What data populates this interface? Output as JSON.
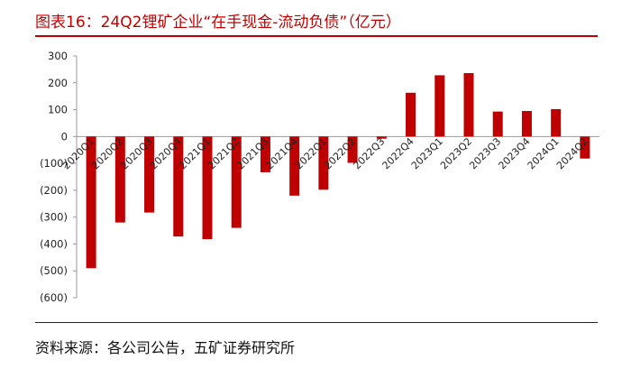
{
  "header": {
    "title": "图表16：24Q2锂矿企业“在手现金-流动负债”（亿元）"
  },
  "footer": {
    "source": "资料来源：各公司公告，五矿证券研究所"
  },
  "chart_data": {
    "type": "bar",
    "title": "图表16：24Q2锂矿企业“在手现金-流动负债”（亿元）",
    "xlabel": "",
    "ylabel": "",
    "categories": [
      "2020Q1",
      "2020Q2",
      "2020Q3",
      "2020Q4",
      "2021Q1",
      "2021Q2",
      "2021Q3",
      "2021Q4",
      "2022Q1",
      "2022Q2",
      "2022Q3",
      "2022Q4",
      "2023Q1",
      "2023Q2",
      "2023Q3",
      "2023Q4",
      "2024Q1",
      "2024Q2"
    ],
    "values": [
      -490,
      -320,
      -283,
      -372,
      -382,
      -340,
      -133,
      -220,
      -198,
      -98,
      -8,
      163,
      228,
      236,
      93,
      95,
      102,
      -82
    ],
    "ylim": [
      -600,
      300
    ],
    "yticks": [
      300,
      200,
      100,
      0,
      -100,
      -200,
      -300,
      -400,
      -500,
      -600
    ],
    "ytick_labels": [
      "300",
      "200",
      "100",
      "0",
      "(100)",
      "(200)",
      "(300)",
      "(400)",
      "(500)",
      "(600)"
    ],
    "bar_color": "#c00000",
    "grid": false,
    "legend": "none"
  }
}
